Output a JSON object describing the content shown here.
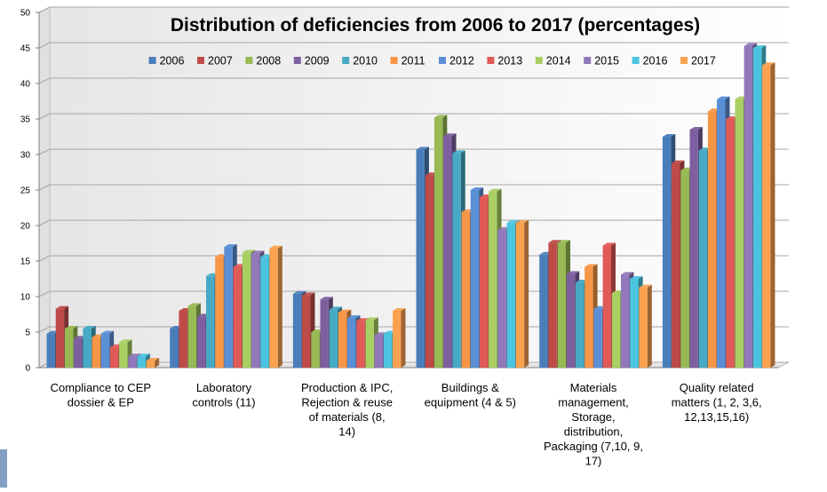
{
  "chart_data": {
    "type": "bar",
    "title": "Distribution of deficiencies from 2006 to 2017 (percentages)",
    "xlabel": "",
    "ylabel": "",
    "ylim": [
      0,
      50
    ],
    "yticks": [
      "0",
      "5",
      "10",
      "15",
      "20",
      "25",
      "30",
      "35",
      "40",
      "45",
      "50"
    ],
    "grid": true,
    "legend_position": "top",
    "categories": [
      "Compliance to CEP dossier & EP",
      "Laboratory controls (11)",
      "Production & IPC, Rejection & reuse of materials (8, 14)",
      "Buildings & equipment (4 & 5)",
      "Materials management, Storage, distribution, Packaging (7,10, 9, 17)",
      "Quality related matters (1, 2, 3,6, 12,13,15,16)"
    ],
    "category_lines": [
      [
        "Compliance to CEP",
        "dossier & EP"
      ],
      [
        "Laboratory",
        "controls (11)"
      ],
      [
        "Production & IPC,",
        "Rejection & reuse",
        "of materials (8,",
        "14)"
      ],
      [
        "Buildings &",
        "equipment (4 & 5)"
      ],
      [
        "Materials",
        "management,",
        "Storage,",
        "distribution,",
        "Packaging (7,10, 9,",
        "17)"
      ],
      [
        "Quality related",
        "matters (1, 2, 3,6,",
        "12,13,15,16)"
      ]
    ],
    "series": [
      {
        "name": "2006",
        "color": "#4A7EBB",
        "values": [
          4.8,
          5.5,
          10.4,
          30.7,
          15.9,
          32.5
        ]
      },
      {
        "name": "2007",
        "color": "#BE4B48",
        "values": [
          8.3,
          8.0,
          10.2,
          27.1,
          17.6,
          28.8
        ]
      },
      {
        "name": "2008",
        "color": "#98B954",
        "values": [
          5.5,
          8.7,
          5.0,
          35.2,
          17.6,
          27.8
        ]
      },
      {
        "name": "2009",
        "color": "#7D5FA0",
        "values": [
          4.1,
          7.2,
          9.6,
          32.6,
          13.2,
          33.5
        ]
      },
      {
        "name": "2010",
        "color": "#46AAC5",
        "values": [
          5.5,
          12.9,
          8.2,
          30.2,
          12.0,
          30.6
        ]
      },
      {
        "name": "2011",
        "color": "#F79646",
        "values": [
          4.3,
          15.6,
          7.8,
          21.9,
          14.2,
          36.1
        ]
      },
      {
        "name": "2012",
        "color": "#5A8FD6",
        "values": [
          4.8,
          17.0,
          7.0,
          25.0,
          8.3,
          37.8
        ]
      },
      {
        "name": "2013",
        "color": "#E05A57",
        "values": [
          2.9,
          14.2,
          6.6,
          24.0,
          17.2,
          35.0
        ]
      },
      {
        "name": "2014",
        "color": "#A9CF62",
        "values": [
          3.6,
          16.2,
          6.7,
          24.8,
          10.5,
          37.8
        ]
      },
      {
        "name": "2015",
        "color": "#9178BB",
        "values": [
          1.6,
          16.1,
          4.6,
          19.4,
          13.1,
          45.3
        ]
      },
      {
        "name": "2016",
        "color": "#4BC4DF",
        "values": [
          1.6,
          15.6,
          4.8,
          20.4,
          12.5,
          45.0
        ]
      },
      {
        "name": "2017",
        "color": "#FAA250",
        "values": [
          1.0,
          16.8,
          8.0,
          20.4,
          11.3,
          42.6
        ]
      }
    ]
  }
}
